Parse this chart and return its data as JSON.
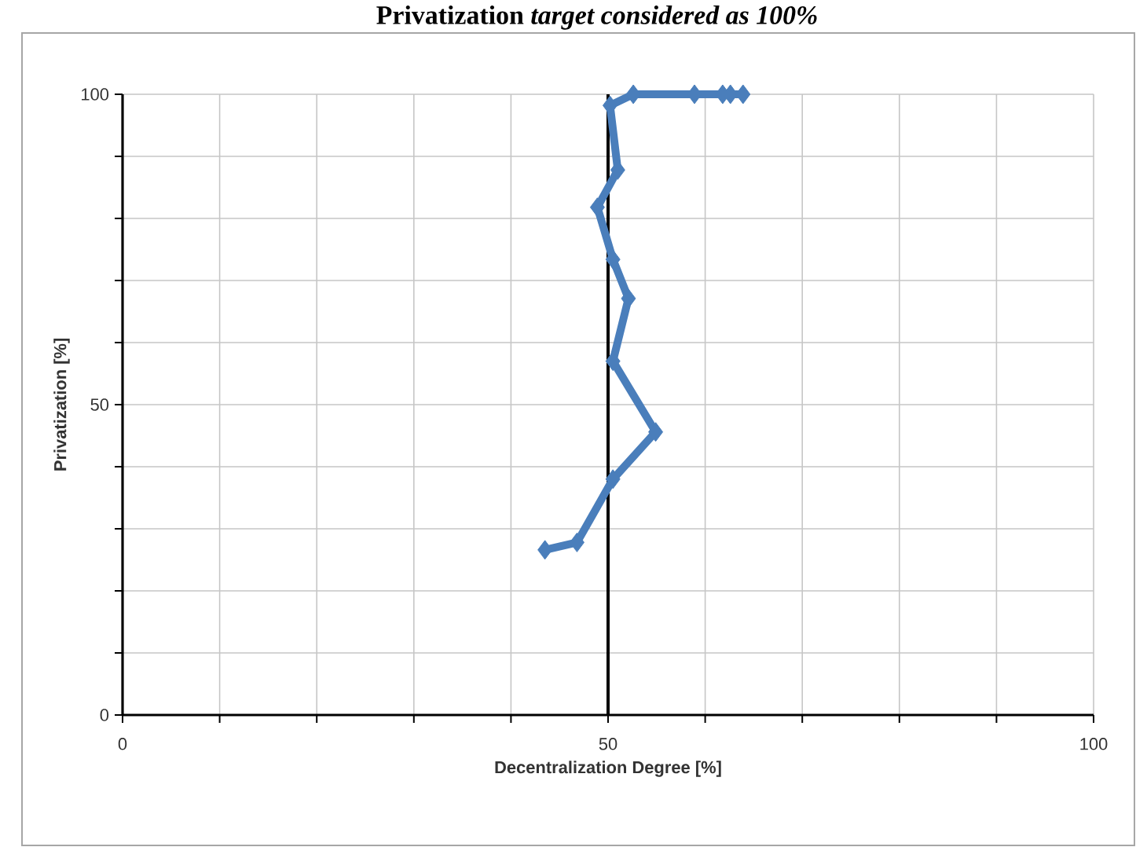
{
  "chart_data": {
    "type": "line",
    "title": "Privatization *target considered as 100%*",
    "xlabel": "Decentralization Degree [%]",
    "ylabel": "Privatization [%]",
    "x": [
      43.5,
      46.8,
      50.5,
      54.9,
      50.5,
      52.1,
      50.5,
      48.9,
      51.0,
      50.2,
      52.6,
      58.9,
      61.8,
      62.6,
      63.9
    ],
    "series": [
      {
        "color": "#4a7ebb",
        "values": [
          26.6,
          27.8,
          38.0,
          45.6,
          57.0,
          67.1,
          73.4,
          81.8,
          87.8,
          98.2,
          100,
          100,
          100,
          100,
          100
        ]
      }
    ],
    "xlim": [
      0,
      100
    ],
    "ylim": [
      0,
      100
    ],
    "xticks": [
      0,
      {
        "value": 10,
        "label": null
      },
      {
        "value": 20,
        "label": null
      },
      {
        "value": 30,
        "label": null
      },
      {
        "value": 40,
        "label": null
      },
      50,
      {
        "value": 60,
        "label": null
      },
      {
        "value": 70,
        "label": null
      },
      {
        "value": 80,
        "label": null
      },
      {
        "value": 90,
        "label": null
      },
      100
    ],
    "yticks": [
      0,
      {
        "value": 10,
        "label": null
      },
      {
        "value": 20,
        "label": null
      },
      {
        "value": 30,
        "label": null
      },
      {
        "value": 40,
        "label": null
      },
      50,
      {
        "value": 60,
        "label": null
      },
      {
        "value": 70,
        "label": null
      },
      {
        "value": 80,
        "label": null
      },
      {
        "value": 90,
        "label": null
      },
      100
    ],
    "ref_lines": [
      {
        "axis": "x",
        "value": 50,
        "color": "#000000"
      }
    ],
    "grid": true,
    "marker": "diamond",
    "line_style": "solid"
  }
}
